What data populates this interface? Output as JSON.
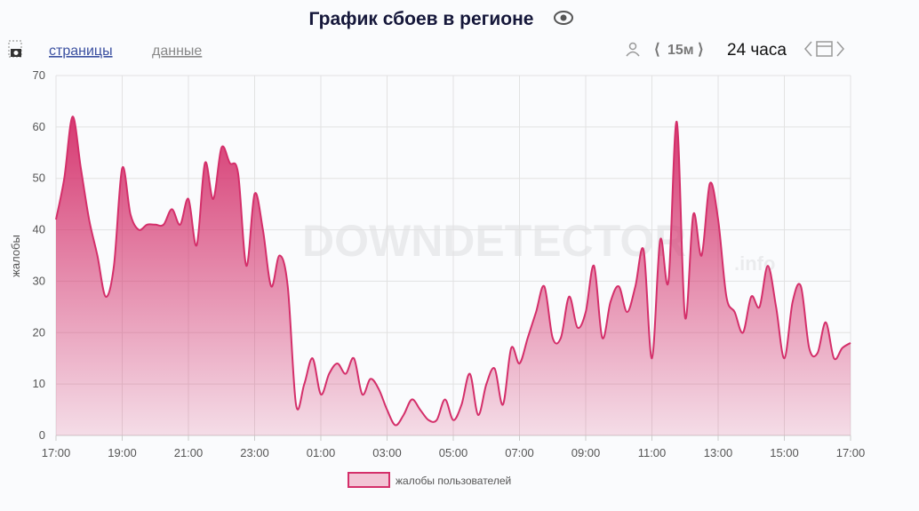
{
  "toolbar": {
    "link_pages": "страницы",
    "link_data": "данные",
    "interval": "15м",
    "range": "24 часа"
  },
  "chart_data": {
    "type": "area",
    "title": "График сбоев в регионе",
    "y_label": "жалобы",
    "watermark": "DOWNDETECTOR",
    "watermark_suffix": ".info",
    "categories": [
      "17:00",
      null,
      null,
      null,
      null,
      null,
      null,
      null,
      "19:00",
      null,
      null,
      null,
      null,
      null,
      null,
      null,
      "21:00",
      null,
      null,
      null,
      null,
      null,
      null,
      null,
      "23:00",
      null,
      null,
      null,
      null,
      null,
      null,
      null,
      "01:00",
      null,
      null,
      null,
      null,
      null,
      null,
      null,
      "03:00",
      null,
      null,
      null,
      null,
      null,
      null,
      null,
      "05:00",
      null,
      null,
      null,
      null,
      null,
      null,
      null,
      "07:00",
      null,
      null,
      null,
      null,
      null,
      null,
      null,
      "09:00",
      null,
      null,
      null,
      null,
      null,
      null,
      null,
      "11:00",
      null,
      null,
      null,
      null,
      null,
      null,
      null,
      "13:00",
      null,
      null,
      null,
      null,
      null,
      null,
      null,
      "15:00",
      null,
      null,
      null,
      null,
      null,
      null,
      null,
      "17:00"
    ],
    "series": [
      {
        "name": "жалобы пользователей",
        "color": "#d42f6a",
        "values": [
          42,
          50,
          62,
          52,
          42,
          35,
          27,
          33,
          52,
          43,
          40,
          41,
          41,
          41,
          44,
          41,
          46,
          37,
          53,
          46,
          56,
          53,
          51,
          33,
          47,
          40,
          29,
          35,
          29,
          6,
          10,
          15,
          8,
          12,
          14,
          12,
          15,
          8,
          11,
          9,
          5,
          2,
          4,
          7,
          5,
          3,
          3,
          7,
          3,
          6,
          12,
          4,
          10,
          13,
          6,
          17,
          14,
          19,
          24,
          29,
          19,
          19,
          27,
          21,
          24,
          33,
          19,
          26,
          29,
          24,
          29,
          36,
          15,
          38,
          30,
          61,
          23,
          43,
          35,
          49,
          42,
          27,
          24,
          20,
          27,
          25,
          33,
          25,
          15,
          26,
          29,
          17,
          16,
          22,
          15,
          17,
          18
        ]
      }
    ],
    "ylim": [
      0,
      70
    ],
    "yticks": [
      0,
      10,
      20,
      30,
      40,
      50,
      60,
      70
    ],
    "grid": true
  }
}
